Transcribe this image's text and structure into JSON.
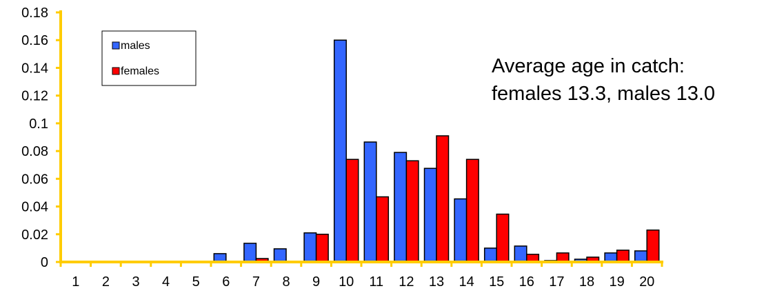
{
  "chart_data": {
    "type": "bar",
    "categories": [
      "1",
      "2",
      "3",
      "4",
      "5",
      "6",
      "7",
      "8",
      "9",
      "10",
      "11",
      "12",
      "13",
      "14",
      "15",
      "16",
      "17",
      "18",
      "19",
      "20"
    ],
    "series": [
      {
        "name": "males",
        "color": "#3366ff",
        "values": [
          0,
          0,
          0,
          0,
          0,
          0.006,
          0.0135,
          0.0095,
          0.021,
          0.16,
          0.0865,
          0.079,
          0.0675,
          0.0455,
          0.01,
          0.0115,
          0.001,
          0.002,
          0.0065,
          0.008
        ]
      },
      {
        "name": "females",
        "color": "#ff0000",
        "values": [
          0,
          0,
          0,
          0,
          0,
          0,
          0.0025,
          0,
          0.02,
          0.074,
          0.047,
          0.073,
          0.091,
          0.074,
          0.0345,
          0.0055,
          0.0065,
          0.0035,
          0.0085,
          0.023
        ]
      }
    ],
    "ylim": [
      0,
      0.18
    ],
    "yticks": [
      "0",
      "0.02",
      "0.04",
      "0.06",
      "0.08",
      "0.1",
      "0.12",
      "0.14",
      "0.16",
      "0.18"
    ],
    "axis_color": "#ffcc00",
    "grid": false,
    "legend_position": "top-left",
    "annotation": [
      "Average age in catch:",
      "females 13.3, males 13.0"
    ]
  }
}
